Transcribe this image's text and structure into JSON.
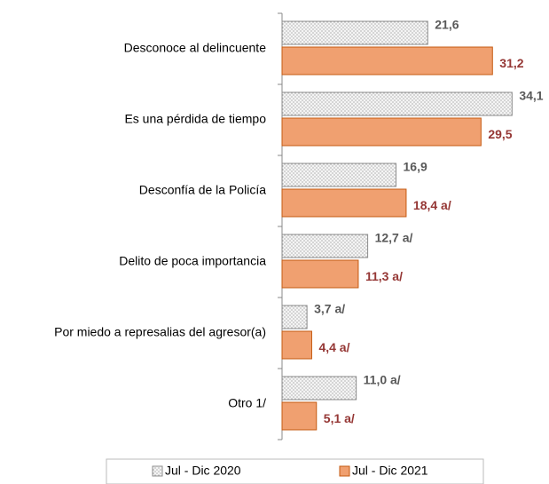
{
  "chart_data": {
    "type": "bar",
    "orientation": "horizontal",
    "categories": [
      "Desconoce al delincuente",
      "Es una pérdida de tiempo",
      "Desconfía de la Policía",
      "Delito de poca importancia",
      "Por miedo a represalias del agresor(a)",
      "Otro 1/"
    ],
    "series": [
      {
        "name": "Jul - Dic 2020",
        "color": "#f2f2f2",
        "pattern": "dots",
        "edge_color": "#8c8c8c",
        "label_color": "#595959",
        "values": [
          21.6,
          34.1,
          16.9,
          12.7,
          3.7,
          11.0
        ],
        "value_labels": [
          "21,6",
          "34,1",
          "16,9",
          "12,7 a/",
          "3,7 a/",
          "11,0 a/"
        ]
      },
      {
        "name": "Jul - Dic 2021",
        "color": "#f0a070",
        "edge_color": "#c55a11",
        "label_color": "#953735",
        "values": [
          31.2,
          29.5,
          18.4,
          11.3,
          4.4,
          5.1
        ],
        "value_labels": [
          "31,2",
          "29,5",
          "18,4 a/",
          "11,3 a/",
          "4,4 a/",
          "5,1 a/"
        ]
      }
    ],
    "xlim": [
      0,
      38
    ],
    "legend": "bottom"
  }
}
